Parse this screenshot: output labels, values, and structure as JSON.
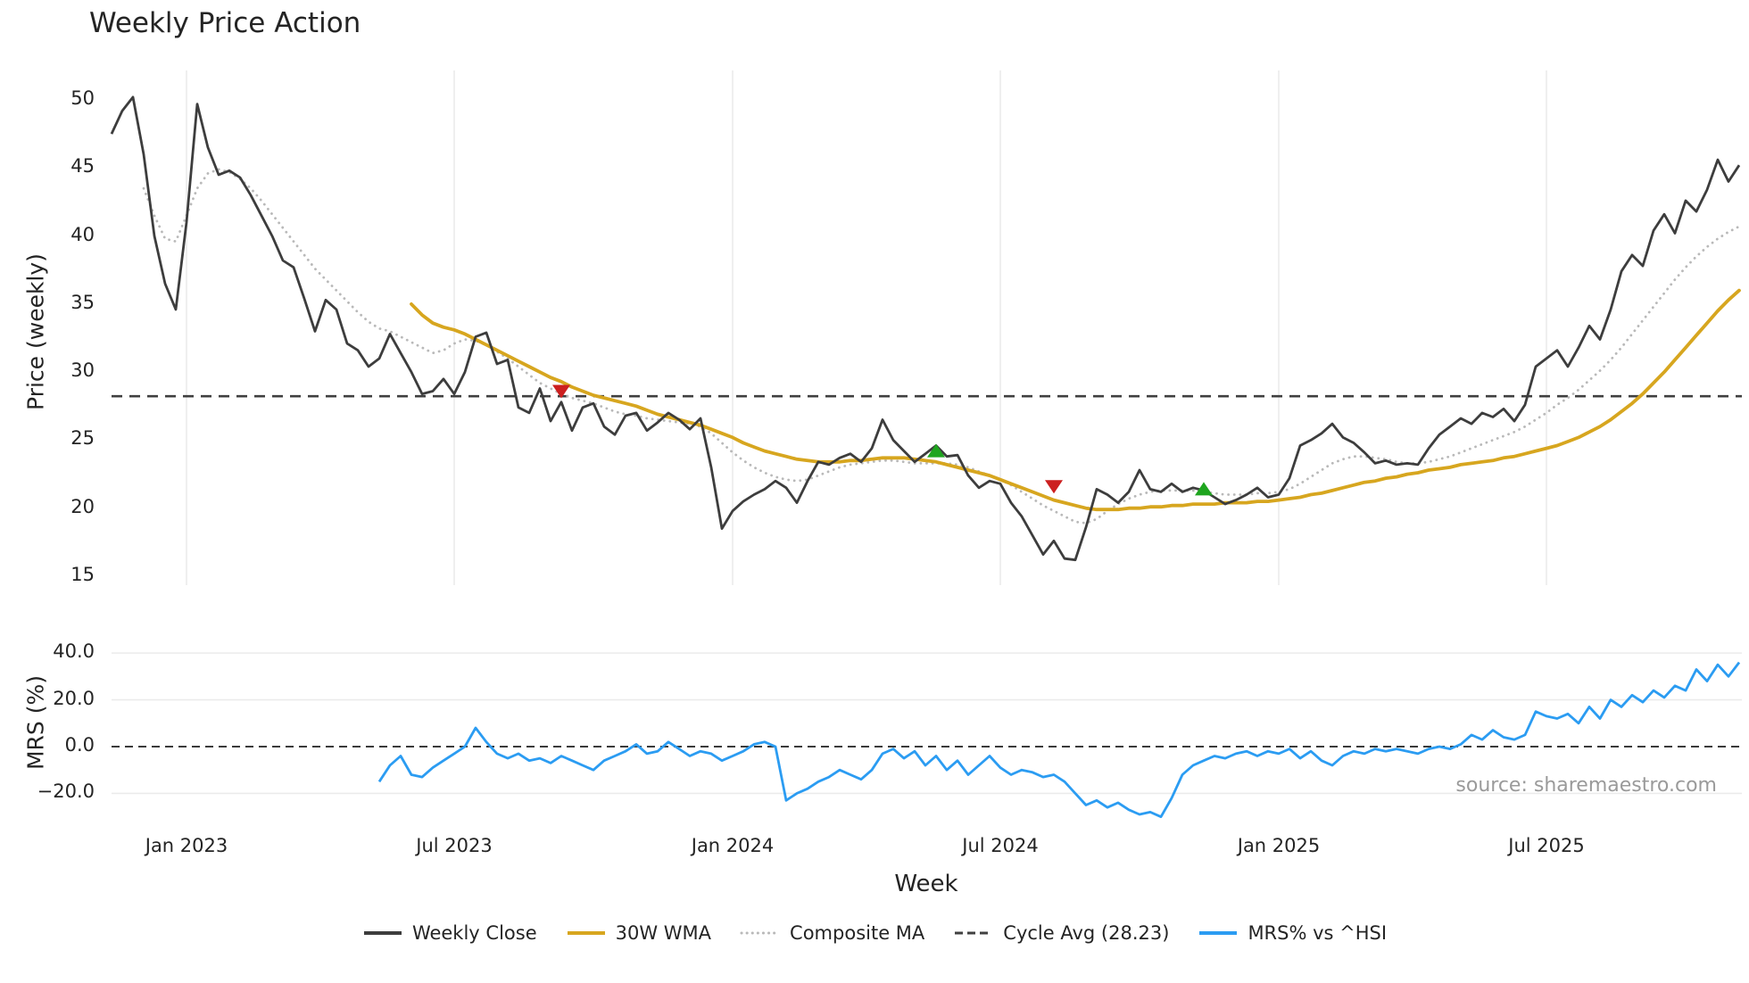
{
  "source_text": "source: sharemaestro.com",
  "chart_data": {
    "type": "line",
    "title": "Weekly Price Action",
    "xlabel": "Week",
    "cycle_avg": 28.23,
    "colors": {
      "grid": "#ebebeb",
      "zero_line": "#3a3a3a",
      "cycle_avg": "#404040",
      "composite": "#b9b9b9",
      "wma": "#d7a61f",
      "close": "#3d3d3d",
      "mrs": "#2b9cf2",
      "sell": "#cc1f1f",
      "buy": "#1fa51f"
    },
    "panels": [
      {
        "name": "price",
        "ylabel": "Price (weekly)",
        "ylim": [
          14,
          51.5
        ],
        "yticks": [
          {
            "v": 15,
            "label": "15"
          },
          {
            "v": 20,
            "label": "20"
          },
          {
            "v": 25,
            "label": "25"
          },
          {
            "v": 30,
            "label": "30"
          },
          {
            "v": 35,
            "label": "35"
          },
          {
            "v": 40,
            "label": "40"
          },
          {
            "v": 45,
            "label": "45"
          },
          {
            "v": 50,
            "label": "50"
          }
        ]
      },
      {
        "name": "mrs",
        "ylabel": "MRS (%)",
        "ylim": [
          -35,
          45
        ],
        "yticks": [
          {
            "v": -20,
            "label": "−20.0"
          },
          {
            "v": 0,
            "label": "0.0"
          },
          {
            "v": 20,
            "label": "20.0"
          },
          {
            "v": 40,
            "label": "40.0"
          }
        ]
      }
    ],
    "x_ticks": {
      "indices": [
        7,
        32,
        58,
        83,
        109,
        134
      ],
      "labels": [
        "Jan 2023",
        "Jul 2023",
        "Jan 2024",
        "Jul 2024",
        "Jan 2025",
        "Jul 2025"
      ]
    },
    "series": {
      "weekly_close": {
        "start": 0,
        "values": [
          47.5,
          49.2,
          50.2,
          46.0,
          40.0,
          36.5,
          34.6,
          41.0,
          49.7,
          46.5,
          44.5,
          44.8,
          44.3,
          43.0,
          41.5,
          40.0,
          38.2,
          37.7,
          35.4,
          33.0,
          35.3,
          34.6,
          32.1,
          31.6,
          30.4,
          31.0,
          32.8,
          31.4,
          30.0,
          28.4,
          28.6,
          29.5,
          28.4,
          30.0,
          32.6,
          32.9,
          30.6,
          30.9,
          27.4,
          27.0,
          28.8,
          26.4,
          27.8,
          25.7,
          27.4,
          27.7,
          26.0,
          25.4,
          26.8,
          27.0,
          25.7,
          26.3,
          27.0,
          26.5,
          25.8,
          26.6,
          23.0,
          18.5,
          19.8,
          20.5,
          21.0,
          21.4,
          22.0,
          21.5,
          20.4,
          22.0,
          23.4,
          23.2,
          23.7,
          24.0,
          23.4,
          24.4,
          26.5,
          25.0,
          24.2,
          23.4,
          24.0,
          24.6,
          23.8,
          23.9,
          22.4,
          21.5,
          22.0,
          21.8,
          20.4,
          19.4,
          18.0,
          16.6,
          17.6,
          16.3,
          16.2,
          18.6,
          21.4,
          21.0,
          20.4,
          21.2,
          22.8,
          21.4,
          21.2,
          21.8,
          21.2,
          21.5,
          21.3,
          20.8,
          20.3,
          20.6,
          21.0,
          21.5,
          20.8,
          21.0,
          22.2,
          24.6,
          25.0,
          25.5,
          26.2,
          25.2,
          24.8,
          24.1,
          23.3,
          23.5,
          23.2,
          23.3,
          23.2,
          24.4,
          25.4,
          26.0,
          26.6,
          26.2,
          27.0,
          26.7,
          27.3,
          26.4,
          27.6,
          30.4,
          31.0,
          31.6,
          30.4,
          31.8,
          33.4,
          32.4,
          34.6,
          37.4,
          38.6,
          37.8,
          40.4,
          41.6,
          40.2,
          42.6,
          41.8,
          43.4,
          45.6,
          44.0,
          45.2
        ]
      },
      "wma_30w": {
        "start": 28,
        "values": [
          35.0,
          34.2,
          33.6,
          33.3,
          33.1,
          32.8,
          32.4,
          32.0,
          31.6,
          31.2,
          30.8,
          30.4,
          30.0,
          29.6,
          29.3,
          28.9,
          28.6,
          28.3,
          28.1,
          27.9,
          27.7,
          27.5,
          27.2,
          26.9,
          26.7,
          26.5,
          26.3,
          26.1,
          25.8,
          25.5,
          25.2,
          24.8,
          24.5,
          24.2,
          24.0,
          23.8,
          23.6,
          23.5,
          23.4,
          23.4,
          23.4,
          23.5,
          23.5,
          23.6,
          23.7,
          23.7,
          23.7,
          23.6,
          23.5,
          23.4,
          23.2,
          23.0,
          22.8,
          22.6,
          22.4,
          22.1,
          21.8,
          21.5,
          21.2,
          20.9,
          20.6,
          20.4,
          20.2,
          20.0,
          19.9,
          19.9,
          19.9,
          20.0,
          20.0,
          20.1,
          20.1,
          20.2,
          20.2,
          20.3,
          20.3,
          20.3,
          20.4,
          20.4,
          20.4,
          20.5,
          20.5,
          20.6,
          20.7,
          20.8,
          21.0,
          21.1,
          21.3,
          21.5,
          21.7,
          21.9,
          22.0,
          22.2,
          22.3,
          22.5,
          22.6,
          22.8,
          22.9,
          23.0,
          23.2,
          23.3,
          23.4,
          23.5,
          23.7,
          23.8,
          24.0,
          24.2,
          24.4,
          24.6,
          24.9,
          25.2,
          25.6,
          26.0,
          26.5,
          27.1,
          27.7,
          28.4,
          29.2,
          30.0,
          30.9,
          31.8,
          32.7,
          33.6,
          34.5,
          35.3,
          36.0
        ]
      },
      "composite_ma": {
        "start": 3,
        "values": [
          43.5,
          41.5,
          39.8,
          39.6,
          41.5,
          43.5,
          44.6,
          44.9,
          44.7,
          44.2,
          43.5,
          42.6,
          41.6,
          40.6,
          39.6,
          38.6,
          37.6,
          36.8,
          36.0,
          35.2,
          34.4,
          33.7,
          33.2,
          33.0,
          32.6,
          32.2,
          31.8,
          31.4,
          31.6,
          32.1,
          32.4,
          32.3,
          32.0,
          31.5,
          31.0,
          30.4,
          29.8,
          29.2,
          28.8,
          28.4,
          28.1,
          27.9,
          27.7,
          27.4,
          27.1,
          26.9,
          26.8,
          26.6,
          26.5,
          26.4,
          26.3,
          26.2,
          26.0,
          25.5,
          24.8,
          24.1,
          23.5,
          23.0,
          22.6,
          22.3,
          22.1,
          22.0,
          22.1,
          22.4,
          22.7,
          23.0,
          23.2,
          23.3,
          23.4,
          23.5,
          23.5,
          23.4,
          23.3,
          23.3,
          23.3,
          23.3,
          23.2,
          23.0,
          22.7,
          22.4,
          22.1,
          21.7,
          21.2,
          20.7,
          20.2,
          19.8,
          19.4,
          19.0,
          18.9,
          19.2,
          19.8,
          20.3,
          20.7,
          21.0,
          21.2,
          21.3,
          21.3,
          21.3,
          21.3,
          21.2,
          21.1,
          21.0,
          21.0,
          21.0,
          21.1,
          21.1,
          21.2,
          21.4,
          21.8,
          22.3,
          22.8,
          23.3,
          23.6,
          23.8,
          23.8,
          23.7,
          23.6,
          23.4,
          23.3,
          23.3,
          23.4,
          23.6,
          23.8,
          24.1,
          24.4,
          24.7,
          25.0,
          25.3,
          25.6,
          26.0,
          26.5,
          27.0,
          27.6,
          28.1,
          28.7,
          29.4,
          30.1,
          30.9,
          31.8,
          32.8,
          33.8,
          34.8,
          35.8,
          36.8,
          37.7,
          38.5,
          39.2,
          39.8,
          40.3,
          40.7
        ]
      },
      "mrs_pct": {
        "start": 25,
        "values": [
          -15,
          -8,
          -4,
          -12,
          -13,
          -9,
          -6,
          -3,
          0,
          8,
          2,
          -3,
          -5,
          -3,
          -6,
          -5,
          -7,
          -4,
          -6,
          -8,
          -10,
          -6,
          -4,
          -2,
          1,
          -3,
          -2,
          2,
          -1,
          -4,
          -2,
          -3,
          -6,
          -4,
          -2,
          1,
          2,
          0,
          -23,
          -20,
          -18,
          -15,
          -13,
          -10,
          -12,
          -14,
          -10,
          -3,
          -1,
          -5,
          -2,
          -8,
          -4,
          -10,
          -6,
          -12,
          -8,
          -4,
          -9,
          -12,
          -10,
          -11,
          -13,
          -12,
          -15,
          -20,
          -25,
          -23,
          -26,
          -24,
          -27,
          -29,
          -28,
          -30,
          -22,
          -12,
          -8,
          -6,
          -4,
          -5,
          -3,
          -2,
          -4,
          -2,
          -3,
          -1,
          -5,
          -2,
          -6,
          -8,
          -4,
          -2,
          -3,
          -1,
          -2,
          -1,
          -2,
          -3,
          -1,
          0,
          -1,
          1,
          5,
          3,
          7,
          4,
          3,
          5,
          15,
          13,
          12,
          14,
          10,
          17,
          12,
          20,
          17,
          22,
          19,
          24,
          21,
          26,
          24,
          33,
          28,
          35,
          30,
          36
        ]
      }
    },
    "signals": {
      "sell": [
        {
          "week": 42,
          "price": 28.6
        },
        {
          "week": 88,
          "price": 21.6
        }
      ],
      "buy": [
        {
          "week": 77,
          "price": 24.2
        },
        {
          "week": 102,
          "price": 21.4
        }
      ]
    },
    "legend": [
      {
        "label": "Weekly Close",
        "style": "solid",
        "color": "#3d3d3d"
      },
      {
        "label": "30W WMA",
        "style": "solid",
        "color": "#d7a61f"
      },
      {
        "label": "Composite MA",
        "style": "dotted",
        "color": "#b9b9b9"
      },
      {
        "label": "Cycle Avg (28.23)",
        "style": "dashed",
        "color": "#404040"
      },
      {
        "label": "MRS% vs ^HSI",
        "style": "solid",
        "color": "#2b9cf2"
      }
    ]
  }
}
